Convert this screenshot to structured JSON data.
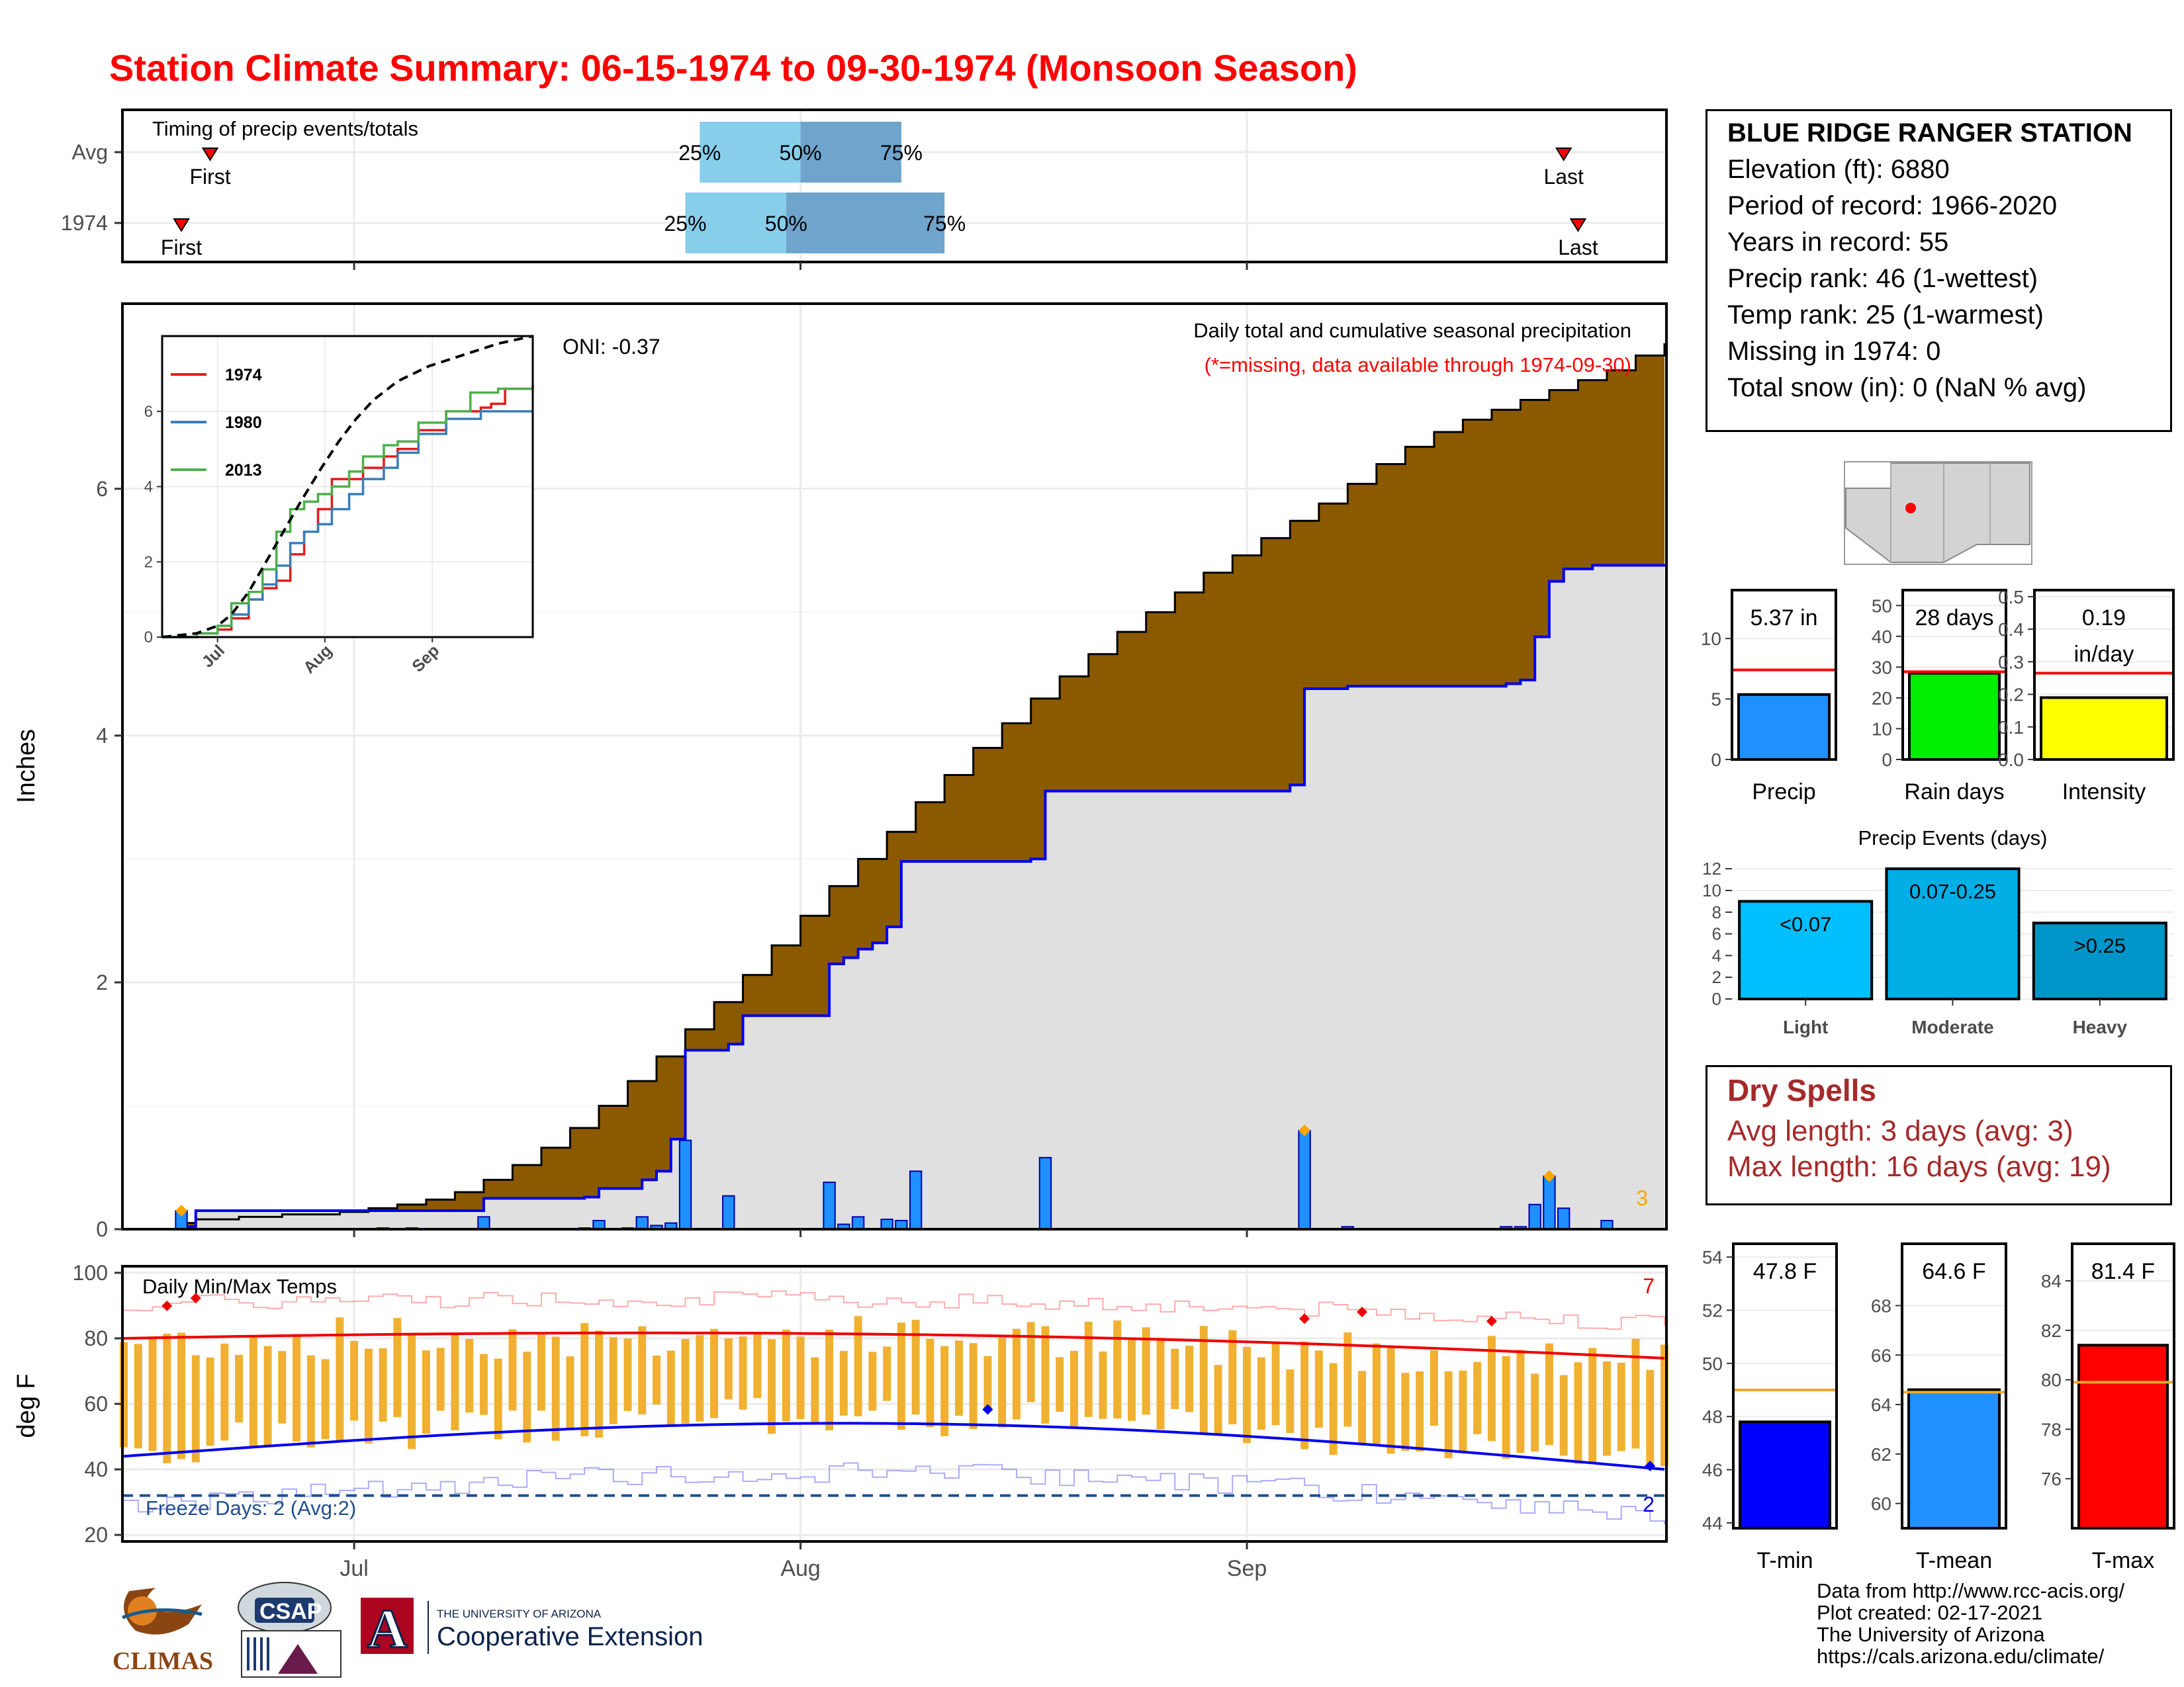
{
  "page": {
    "title": "Station Climate Summary: 06-15-1974 to 09-30-1974 (Monsoon Season)"
  },
  "station": {
    "name": "BLUE RIDGE RANGER STATION",
    "elevation": "Elevation (ft): 6880",
    "period": "Period of record: 1966-2020",
    "years": "Years in record: 55",
    "precip_rank": "Precip rank: 46 (1-wettest)",
    "temp_rank": "Temp rank: 25 (1-warmest)",
    "missing": "Missing in 1974: 0",
    "snow": "Total snow (in): 0 (NaN % avg)"
  },
  "dry_spells": {
    "title": "Dry Spells",
    "avg": "Avg length: 3 days (avg: 3)",
    "max": "Max length: 16 days (avg: 19)"
  },
  "credits": {
    "line1": "Data from http://www.rcc-acis.org/",
    "line2": "Plot created: 02-17-2021",
    "line3": "The University of Arizona",
    "line4": "https://cals.arizona.edu/climate/"
  },
  "logos": {
    "climas": "CLIMAS",
    "csap": "CSAP",
    "ua_top": "THE UNIVERSITY OF ARIZONA",
    "ua_main": "Cooperative Extension",
    "ua_letter": "A"
  },
  "colors": {
    "title": "#ff0000",
    "brown": "#8b5a00",
    "gray_fill": "#e0e0e0",
    "blue_line": "#0000ee",
    "bar_blue": "#1e90ff",
    "timing_light": "#87ceeb",
    "timing_dark": "#6fa4cc",
    "temp_bar": "#f0b030",
    "dry_text": "#a52a2a"
  },
  "chart_data": [
    {
      "id": "timing",
      "type": "bar",
      "title": "Timing of precip events/totals",
      "x_axis": {
        "start": "1974-06-15",
        "end": "1974-09-30",
        "ticks": [
          "Jul",
          "Aug",
          "Sep"
        ]
      },
      "rows": [
        {
          "label": "Avg",
          "first": "1974-06-21",
          "q25": "1974-07-25",
          "q50": "1974-08-01",
          "q75": "1974-08-08",
          "last": "1974-09-23"
        },
        {
          "label": "1974",
          "first": "1974-06-19",
          "q25": "1974-07-24",
          "q50": "1974-07-31",
          "q75": "1974-08-11",
          "last": "1974-09-24"
        }
      ],
      "labels": {
        "first": "First",
        "last": "Last",
        "q25": "25%",
        "q50": "50%",
        "q75": "75%"
      }
    },
    {
      "id": "precip_main",
      "type": "area",
      "title": "Daily total and cumulative seasonal precipitation",
      "subtitle": "(*=missing, data available through 1974-09-30)",
      "oni": "ONI: -0.37",
      "ylabel": "Inches",
      "ylim": [
        0,
        7.5
      ],
      "yticks": [
        0,
        2,
        4,
        6
      ],
      "x_ticks": [
        "Jul",
        "Aug",
        "Sep"
      ],
      "corner_count": "3",
      "avg_cumulative": [
        [
          "06-15",
          0
        ],
        [
          "06-16",
          0
        ],
        [
          "06-17",
          0
        ],
        [
          "06-18",
          0
        ],
        [
          "06-19",
          0.05
        ],
        [
          "06-20",
          0.08
        ],
        [
          "06-23",
          0.1
        ],
        [
          "06-26",
          0.12
        ],
        [
          "06-30",
          0.14
        ],
        [
          "07-02",
          0.17
        ],
        [
          "07-04",
          0.2
        ],
        [
          "07-06",
          0.24
        ],
        [
          "07-08",
          0.3
        ],
        [
          "07-10",
          0.4
        ],
        [
          "07-12",
          0.52
        ],
        [
          "07-14",
          0.66
        ],
        [
          "07-16",
          0.82
        ],
        [
          "07-18",
          1.0
        ],
        [
          "07-20",
          1.2
        ],
        [
          "07-22",
          1.4
        ],
        [
          "07-24",
          1.62
        ],
        [
          "07-26",
          1.84
        ],
        [
          "07-28",
          2.06
        ],
        [
          "07-30",
          2.3
        ],
        [
          "08-01",
          2.54
        ],
        [
          "08-03",
          2.78
        ],
        [
          "08-05",
          3.0
        ],
        [
          "08-07",
          3.22
        ],
        [
          "08-09",
          3.46
        ],
        [
          "08-11",
          3.68
        ],
        [
          "08-13",
          3.9
        ],
        [
          "08-15",
          4.1
        ],
        [
          "08-17",
          4.3
        ],
        [
          "08-19",
          4.48
        ],
        [
          "08-21",
          4.66
        ],
        [
          "08-23",
          4.84
        ],
        [
          "08-25",
          5.0
        ],
        [
          "08-27",
          5.16
        ],
        [
          "08-29",
          5.32
        ],
        [
          "08-31",
          5.46
        ],
        [
          "09-02",
          5.6
        ],
        [
          "09-04",
          5.74
        ],
        [
          "09-06",
          5.88
        ],
        [
          "09-08",
          6.04
        ],
        [
          "09-10",
          6.2
        ],
        [
          "09-12",
          6.34
        ],
        [
          "09-14",
          6.46
        ],
        [
          "09-16",
          6.56
        ],
        [
          "09-18",
          6.64
        ],
        [
          "09-20",
          6.72
        ],
        [
          "09-22",
          6.8
        ],
        [
          "09-24",
          6.88
        ],
        [
          "09-26",
          6.96
        ],
        [
          "09-28",
          7.08
        ],
        [
          "09-30",
          7.18
        ]
      ],
      "cumulative_1974": [
        [
          "06-15",
          0
        ],
        [
          "06-19",
          0.02
        ],
        [
          "06-20",
          0.15
        ],
        [
          "06-30",
          0.15
        ],
        [
          "07-01",
          0.15
        ],
        [
          "07-03",
          0.15
        ],
        [
          "07-05",
          0.15
        ],
        [
          "07-09",
          0.15
        ],
        [
          "07-10",
          0.25
        ],
        [
          "07-17",
          0.26
        ],
        [
          "07-18",
          0.33
        ],
        [
          "07-20",
          0.33
        ],
        [
          "07-21",
          0.4
        ],
        [
          "07-22",
          0.47
        ],
        [
          "07-23",
          0.73
        ],
        [
          "07-24",
          1.45
        ],
        [
          "07-27",
          1.5
        ],
        [
          "07-28",
          1.73
        ],
        [
          "08-02",
          1.73
        ],
        [
          "08-03",
          2.15
        ],
        [
          "08-04",
          2.2
        ],
        [
          "08-05",
          2.27
        ],
        [
          "08-06",
          2.32
        ],
        [
          "08-07",
          2.45
        ],
        [
          "08-08",
          2.98
        ],
        [
          "08-17",
          3.0
        ],
        [
          "08-18",
          3.55
        ],
        [
          "09-04",
          3.6
        ],
        [
          "09-05",
          4.38
        ],
        [
          "09-08",
          4.4
        ],
        [
          "09-09",
          4.4
        ],
        [
          "09-15",
          4.4
        ],
        [
          "09-19",
          4.42
        ],
        [
          "09-20",
          4.45
        ],
        [
          "09-21",
          4.8
        ],
        [
          "09-22",
          5.25
        ],
        [
          "09-23",
          5.35
        ],
        [
          "09-25",
          5.38
        ],
        [
          "09-30",
          5.37
        ]
      ],
      "daily_1974": [
        [
          "06-19",
          0.15
        ],
        [
          "06-30",
          0.0
        ],
        [
          "07-03",
          0.01
        ],
        [
          "07-05",
          0.01
        ],
        [
          "07-10",
          0.1
        ],
        [
          "07-17",
          0.01
        ],
        [
          "07-18",
          0.07
        ],
        [
          "07-20",
          0.01
        ],
        [
          "07-21",
          0.1
        ],
        [
          "07-22",
          0.03
        ],
        [
          "07-23",
          0.05
        ],
        [
          "07-24",
          0.72
        ],
        [
          "07-27",
          0.27
        ],
        [
          "07-29",
          0.0
        ],
        [
          "08-03",
          0.38
        ],
        [
          "08-04",
          0.04
        ],
        [
          "08-05",
          0.1
        ],
        [
          "08-07",
          0.08
        ],
        [
          "08-08",
          0.07
        ],
        [
          "08-09",
          0.47
        ],
        [
          "08-18",
          0.58
        ],
        [
          "09-05",
          0.8
        ],
        [
          "09-08",
          0.02
        ],
        [
          "09-19",
          0.02
        ],
        [
          "09-20",
          0.02
        ],
        [
          "09-21",
          0.2
        ],
        [
          "09-22",
          0.43
        ],
        [
          "09-23",
          0.17
        ],
        [
          "09-26",
          0.07
        ]
      ],
      "inset": {
        "type": "line",
        "yticks": [
          0,
          2,
          4,
          6
        ],
        "x_ticks": [
          "Jul",
          "Aug",
          "Sep"
        ],
        "series": [
          {
            "name": "1974",
            "color": "#e41a1c",
            "values": [
              [
                "06-15",
                0
              ],
              [
                "06-25",
                0.1
              ],
              [
                "07-01",
                0.2
              ],
              [
                "07-05",
                0.5
              ],
              [
                "07-10",
                1.0
              ],
              [
                "07-14",
                1.3
              ],
              [
                "07-18",
                1.5
              ],
              [
                "07-22",
                2.2
              ],
              [
                "07-26",
                2.8
              ],
              [
                "07-30",
                3.4
              ],
              [
                "08-03",
                4.2
              ],
              [
                "08-08",
                4.2
              ],
              [
                "08-12",
                4.5
              ],
              [
                "08-18",
                4.8
              ],
              [
                "08-22",
                5.0
              ],
              [
                "08-28",
                5.5
              ],
              [
                "09-05",
                6.0
              ],
              [
                "09-15",
                6.1
              ],
              [
                "09-18",
                6.2
              ],
              [
                "09-22",
                6.6
              ],
              [
                "09-30",
                6.7
              ]
            ]
          },
          {
            "name": "1980",
            "color": "#377eb8",
            "values": [
              [
                "06-15",
                0
              ],
              [
                "06-25",
                0.1
              ],
              [
                "07-01",
                0.3
              ],
              [
                "07-05",
                0.6
              ],
              [
                "07-10",
                1.0
              ],
              [
                "07-14",
                1.4
              ],
              [
                "07-18",
                1.9
              ],
              [
                "07-22",
                2.5
              ],
              [
                "07-26",
                2.8
              ],
              [
                "07-30",
                3.0
              ],
              [
                "08-03",
                3.4
              ],
              [
                "08-08",
                3.8
              ],
              [
                "08-12",
                4.2
              ],
              [
                "08-18",
                4.5
              ],
              [
                "08-22",
                4.9
              ],
              [
                "08-28",
                5.4
              ],
              [
                "09-05",
                5.8
              ],
              [
                "09-15",
                6.0
              ],
              [
                "09-22",
                6.0
              ],
              [
                "09-30",
                6.0
              ]
            ]
          },
          {
            "name": "2013",
            "color": "#4daf4a",
            "values": [
              [
                "06-15",
                0
              ],
              [
                "06-25",
                0.1
              ],
              [
                "07-01",
                0.3
              ],
              [
                "07-05",
                0.9
              ],
              [
                "07-10",
                1.2
              ],
              [
                "07-14",
                1.8
              ],
              [
                "07-18",
                2.8
              ],
              [
                "07-22",
                3.4
              ],
              [
                "07-26",
                3.6
              ],
              [
                "07-30",
                3.8
              ],
              [
                "08-03",
                4.0
              ],
              [
                "08-08",
                4.4
              ],
              [
                "08-12",
                4.8
              ],
              [
                "08-18",
                5.1
              ],
              [
                "08-22",
                5.2
              ],
              [
                "08-28",
                5.7
              ],
              [
                "09-05",
                6.0
              ],
              [
                "09-12",
                6.5
              ],
              [
                "09-20",
                6.6
              ],
              [
                "09-30",
                6.6
              ]
            ]
          },
          {
            "name": "",
            "color": "#000000",
            "dashed": true,
            "values": [
              [
                "06-15",
                0
              ],
              [
                "06-25",
                0.1
              ],
              [
                "07-01",
                0.3
              ],
              [
                "07-05",
                0.6
              ],
              [
                "07-10",
                1.2
              ],
              [
                "07-15",
                2.0
              ],
              [
                "07-20",
                2.8
              ],
              [
                "07-25",
                3.6
              ],
              [
                "07-31",
                4.5
              ],
              [
                "08-05",
                5.2
              ],
              [
                "08-10",
                5.8
              ],
              [
                "08-15",
                6.3
              ],
              [
                "08-22",
                6.8
              ],
              [
                "08-31",
                7.2
              ],
              [
                "09-10",
                7.5
              ],
              [
                "09-20",
                7.8
              ],
              [
                "09-30",
                8.0
              ]
            ]
          }
        ]
      }
    },
    {
      "id": "temps",
      "type": "bar",
      "title": "Daily Min/Max Temps",
      "ylabel": "deg F",
      "ylim": [
        18,
        102
      ],
      "yticks": [
        20,
        40,
        60,
        80,
        100
      ],
      "freeze_label": "Freeze Days: 2 (Avg:2)",
      "freeze_line": 32,
      "count_high": "7",
      "count_low": "2"
    },
    {
      "id": "precip_summary",
      "type": "bar",
      "categories": [
        "Precip",
        "Rain days",
        "Intensity"
      ],
      "panels": [
        {
          "label": "Precip",
          "value": 5.37,
          "avg": 7.4,
          "ylim": [
            0,
            14
          ],
          "yticks": [
            0,
            5,
            10
          ],
          "text": "5.37 in",
          "color": "#1e90ff"
        },
        {
          "label": "Rain days",
          "value": 28,
          "avg": 28.5,
          "ylim": [
            0,
            55
          ],
          "yticks": [
            0,
            10,
            20,
            30,
            40,
            50
          ],
          "text": "28 days",
          "color": "#00ee00"
        },
        {
          "label": "Intensity",
          "value": 0.19,
          "avg": 0.265,
          "ylim": [
            0,
            0.52
          ],
          "yticks": [
            0.0,
            0.1,
            0.2,
            0.3,
            0.4,
            0.5
          ],
          "text": "0.19",
          "text2": "in/day",
          "color": "#ffff00"
        }
      ]
    },
    {
      "id": "precip_events",
      "type": "bar",
      "title": "Precip Events (days)",
      "categories": [
        "Light",
        "Moderate",
        "Heavy"
      ],
      "values": [
        9,
        12,
        7
      ],
      "labels": [
        "<0.07",
        "0.07-0.25",
        ">0.25"
      ],
      "colors": [
        "#00bfff",
        "#00aee6",
        "#0095c8"
      ],
      "ylim": [
        0,
        12.5
      ],
      "yticks": [
        0,
        2,
        4,
        6,
        8,
        10,
        12
      ]
    },
    {
      "id": "temp_summary",
      "type": "bar",
      "categories": [
        "T-min",
        "T-mean",
        "T-max"
      ],
      "panels": [
        {
          "label": "T-min",
          "value": 47.8,
          "avg": 49.0,
          "ylim": [
            43.8,
            54.5
          ],
          "yticks": [
            44,
            46,
            48,
            50,
            52,
            54
          ],
          "text": "47.8 F",
          "color": "#0000ff"
        },
        {
          "label": "T-mean",
          "value": 64.6,
          "avg": 64.5,
          "ylim": [
            59.0,
            70.5
          ],
          "yticks": [
            60,
            62,
            64,
            66,
            68
          ],
          "text": "64.6 F",
          "color": "#1e90ff"
        },
        {
          "label": "T-max",
          "value": 81.4,
          "avg": 79.9,
          "ylim": [
            74.0,
            85.5
          ],
          "yticks": [
            76,
            78,
            80,
            82,
            84
          ],
          "text": "81.4 F",
          "color": "#ff0000"
        }
      ]
    }
  ]
}
